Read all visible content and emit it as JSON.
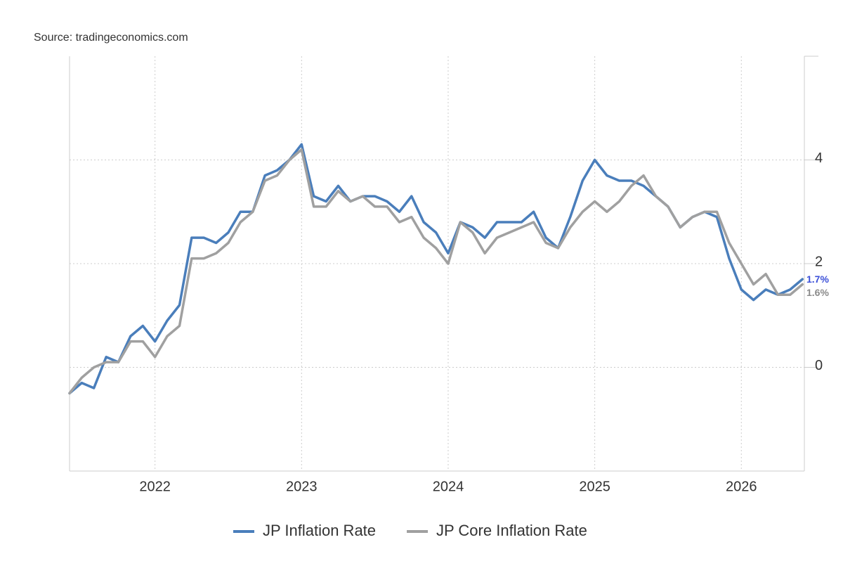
{
  "chart_data": {
    "type": "line",
    "source": "Source: tradingeconomics.com",
    "x": [
      2021.417,
      2021.5,
      2021.583,
      2021.667,
      2021.75,
      2021.833,
      2021.917,
      2022,
      2022.083,
      2022.167,
      2022.25,
      2022.333,
      2022.417,
      2022.5,
      2022.583,
      2022.667,
      2022.75,
      2022.833,
      2022.917,
      2023,
      2023.083,
      2023.167,
      2023.25,
      2023.333,
      2023.417,
      2023.5,
      2023.583,
      2023.667,
      2023.75,
      2023.833,
      2023.917,
      2024,
      2024.083,
      2024.167,
      2024.25,
      2024.333,
      2024.417,
      2024.5,
      2024.583,
      2024.667,
      2024.75,
      2024.833,
      2024.917,
      2025,
      2025.083,
      2025.167,
      2025.25,
      2025.333,
      2025.417,
      2025.5,
      2025.583,
      2025.667,
      2025.75,
      2025.833,
      2025.917,
      2026,
      2026.083,
      2026.167,
      2026.25,
      2026.333,
      2026.417
    ],
    "series": [
      {
        "name": "JP Inflation Rate",
        "color": "#4a7ebb",
        "label_color": "#3b4fd8",
        "values": [
          -0.5,
          -0.3,
          -0.4,
          0.2,
          0.1,
          0.6,
          0.8,
          0.5,
          0.9,
          1.2,
          2.5,
          2.5,
          2.4,
          2.6,
          3.0,
          3.0,
          3.7,
          3.8,
          4.0,
          4.3,
          3.3,
          3.2,
          3.5,
          3.2,
          3.3,
          3.3,
          3.2,
          3.0,
          3.3,
          2.8,
          2.6,
          2.2,
          2.8,
          2.7,
          2.5,
          2.8,
          2.8,
          2.8,
          3.0,
          2.5,
          2.3,
          2.9,
          3.6,
          4.0,
          3.7,
          3.6,
          3.6,
          3.5,
          3.3,
          3.1,
          2.7,
          2.9,
          3.0,
          2.9,
          2.1,
          1.5,
          1.3,
          1.5,
          1.4,
          1.5,
          1.7
        ],
        "value_labels": [
          null,
          null,
          null,
          null,
          null,
          null,
          null,
          null,
          null,
          null,
          null,
          null,
          null,
          null,
          null,
          null,
          null,
          null,
          null,
          null,
          null,
          null,
          null,
          null,
          null,
          null,
          null,
          null,
          null,
          null,
          null,
          null,
          null,
          null,
          null,
          null,
          null,
          null,
          null,
          null,
          null,
          null,
          null,
          null,
          null,
          null,
          null,
          null,
          null,
          null,
          null,
          null,
          null,
          null,
          null,
          null,
          null,
          null,
          null,
          null,
          "1.7%"
        ]
      },
      {
        "name": "JP Core Inflation Rate",
        "color": "#a0a0a0",
        "label_color": "#8a8a8a",
        "values": [
          -0.5,
          -0.2,
          0.0,
          0.1,
          0.1,
          0.5,
          0.5,
          0.2,
          0.6,
          0.8,
          2.1,
          2.1,
          2.2,
          2.4,
          2.8,
          3.0,
          3.6,
          3.7,
          4.0,
          4.2,
          3.1,
          3.1,
          3.4,
          3.2,
          3.3,
          3.1,
          3.1,
          2.8,
          2.9,
          2.5,
          2.3,
          2.0,
          2.8,
          2.6,
          2.2,
          2.5,
          2.6,
          2.7,
          2.8,
          2.4,
          2.3,
          2.7,
          3.0,
          3.2,
          3.0,
          3.2,
          3.5,
          3.7,
          3.3,
          3.1,
          2.7,
          2.9,
          3.0,
          3.0,
          2.4,
          2.0,
          1.6,
          1.8,
          1.4,
          1.4,
          1.6
        ],
        "value_labels": [
          null,
          null,
          null,
          null,
          null,
          null,
          null,
          null,
          null,
          null,
          null,
          null,
          null,
          null,
          null,
          null,
          null,
          null,
          null,
          null,
          null,
          null,
          null,
          null,
          null,
          null,
          null,
          null,
          null,
          null,
          null,
          null,
          null,
          null,
          null,
          null,
          null,
          null,
          null,
          null,
          null,
          null,
          null,
          null,
          null,
          null,
          null,
          null,
          null,
          null,
          null,
          null,
          null,
          null,
          null,
          null,
          null,
          null,
          null,
          null,
          "1.6%"
        ]
      }
    ],
    "xlim": [
      2021.417,
      2026.43
    ],
    "xticks": [
      2022,
      2023,
      2024,
      2025,
      2026
    ],
    "ylim": [
      -2,
      6
    ],
    "yticks": [
      0,
      2,
      4
    ],
    "grid": true,
    "legend": "bottom"
  }
}
